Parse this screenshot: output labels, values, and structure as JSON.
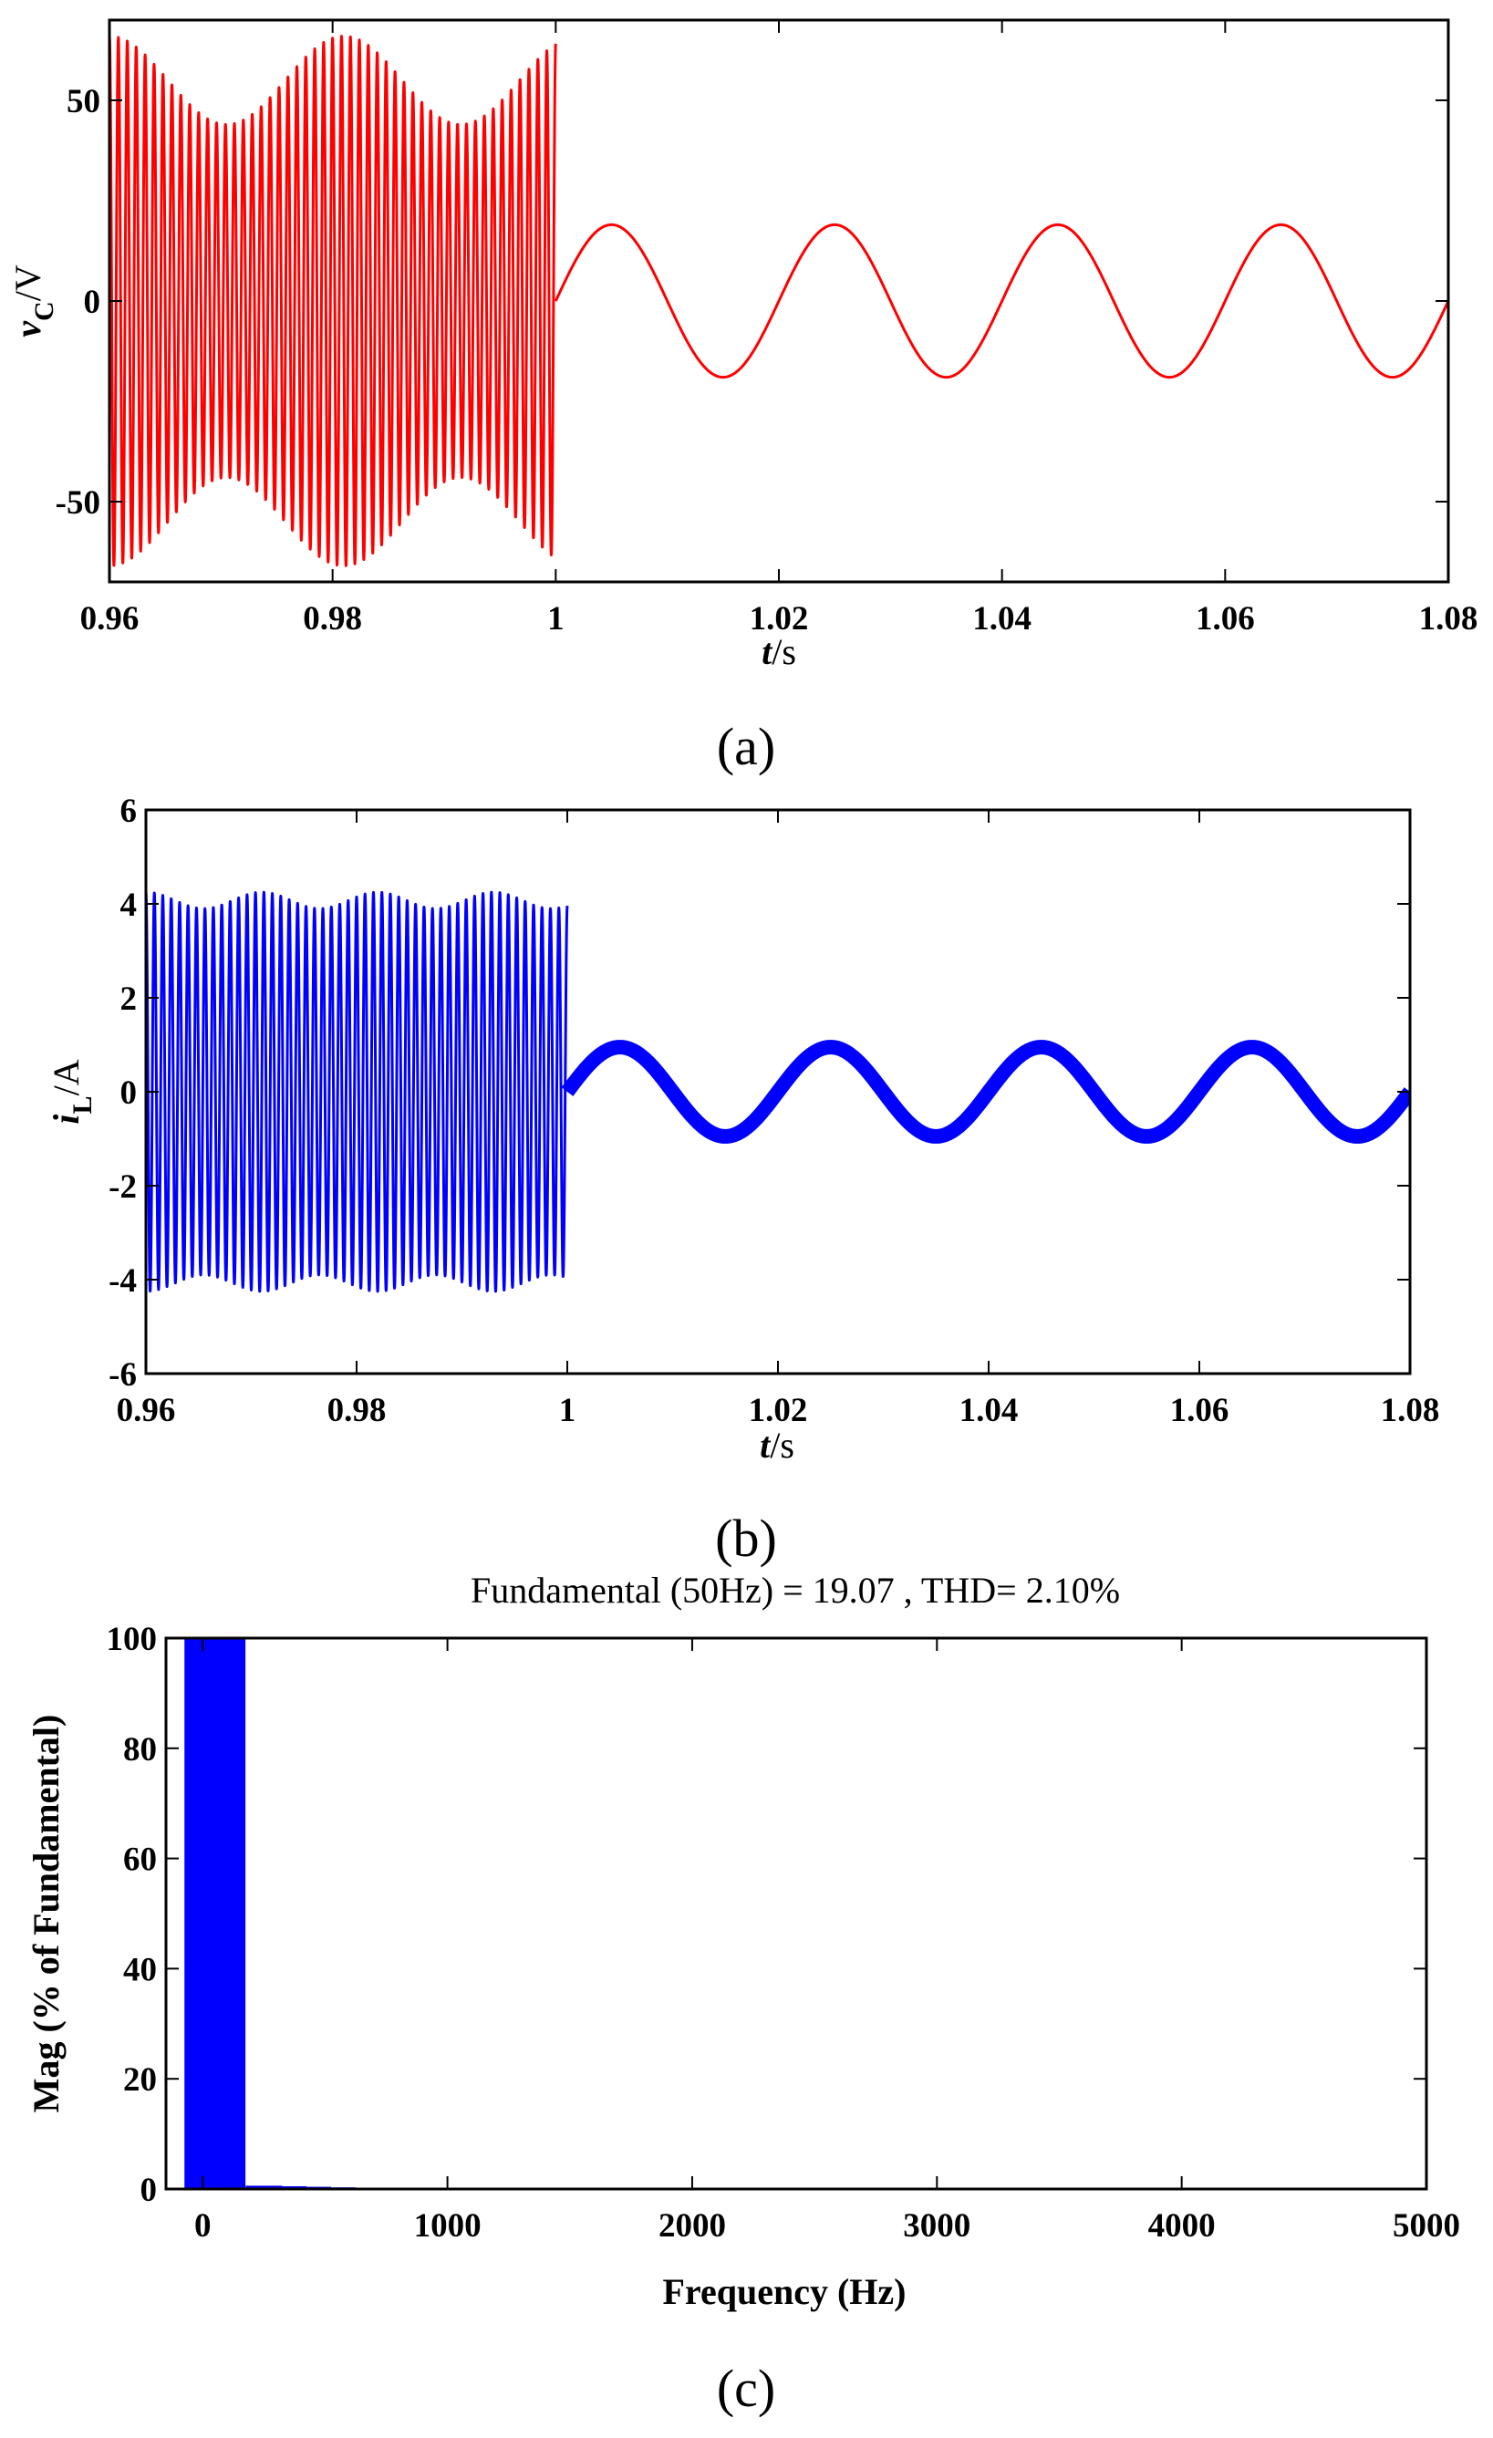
{
  "chart_data": [
    {
      "panel": "(a)",
      "type": "line",
      "title": "",
      "xlabel": {
        "var": "t",
        "unit": "/s"
      },
      "ylabel": {
        "var": "v",
        "sub": "C",
        "unit": "/V"
      },
      "xlim": [
        0.96,
        1.08
      ],
      "ylim": [
        -70,
        70
      ],
      "xticks": [
        0.96,
        0.98,
        1.0,
        1.02,
        1.04,
        1.06,
        1.08
      ],
      "xtick_labels": [
        "0.96",
        "0.98",
        "1",
        "1.02",
        "1.04",
        "1.06",
        "1.08"
      ],
      "yticks": [
        -50,
        0,
        50
      ],
      "ytick_labels": [
        "-50",
        "0",
        "50"
      ],
      "grid": false,
      "series": [
        {
          "name": "vC",
          "color": "#ff0000",
          "segments": [
            {
              "x_range": [
                0.96,
                1.0
              ],
              "kind": "oscillation",
              "frequency_hz": 1250,
              "amplitude": 66,
              "envelope_min": 44,
              "envelope_period_s": 0.021
            },
            {
              "x_range": [
                1.0,
                1.08
              ],
              "kind": "sine",
              "frequency_hz": 50,
              "amplitude": 19,
              "offset": 0
            }
          ]
        }
      ]
    },
    {
      "panel": "(b)",
      "type": "line",
      "title": "",
      "xlabel": {
        "var": "t",
        "unit": "/s"
      },
      "ylabel": {
        "var": "i",
        "sub": "L",
        "unit": "/A"
      },
      "xlim": [
        0.96,
        1.08
      ],
      "ylim": [
        -6,
        6
      ],
      "xticks": [
        0.96,
        0.98,
        1.0,
        1.02,
        1.04,
        1.06,
        1.08
      ],
      "xtick_labels": [
        "0.96",
        "0.98",
        "1",
        "1.02",
        "1.04",
        "1.06",
        "1.08"
      ],
      "yticks": [
        -6,
        -4,
        -2,
        0,
        2,
        4,
        6
      ],
      "ytick_labels": [
        "-6",
        "-4",
        "-2",
        "0",
        "2",
        "4",
        "6"
      ],
      "grid": false,
      "series": [
        {
          "name": "iL",
          "color": "#0000ff",
          "segments": [
            {
              "x_range": [
                0.96,
                1.0
              ],
              "kind": "oscillation",
              "frequency_hz": 1250,
              "amplitude": 4.25,
              "envelope_min": 3.9,
              "envelope_period_s": 0.011
            },
            {
              "x_range": [
                1.0,
                1.08
              ],
              "kind": "sine",
              "frequency_hz": 50,
              "amplitude": 0.95,
              "offset": 0
            }
          ]
        }
      ]
    },
    {
      "panel": "(c)",
      "type": "bar",
      "title": "Fundamental (50Hz) = 19.07 , THD= 2.10%",
      "xlabel": "Frequency (Hz)",
      "ylabel": "Mag (% of Fundamental)",
      "xlim": [
        -150,
        5000
      ],
      "ylim": [
        0,
        100
      ],
      "xticks": [
        0,
        1000,
        2000,
        3000,
        4000,
        5000
      ],
      "xtick_labels": [
        "0",
        "1000",
        "2000",
        "3000",
        "4000",
        "5000"
      ],
      "yticks": [
        0,
        20,
        40,
        60,
        80,
        100
      ],
      "ytick_labels": [
        "0",
        "20",
        "40",
        "60",
        "80",
        "100"
      ],
      "grid": false,
      "bars": [
        {
          "x": 0,
          "value": 100
        },
        {
          "x": 50,
          "value": 100
        },
        {
          "x": 100,
          "value": 100
        },
        {
          "x": 250,
          "value": 0.6
        },
        {
          "x": 350,
          "value": 0.5
        },
        {
          "x": 450,
          "value": 0.4
        },
        {
          "x": 550,
          "value": 0.3
        }
      ],
      "bar_color": "#0000ff"
    }
  ]
}
